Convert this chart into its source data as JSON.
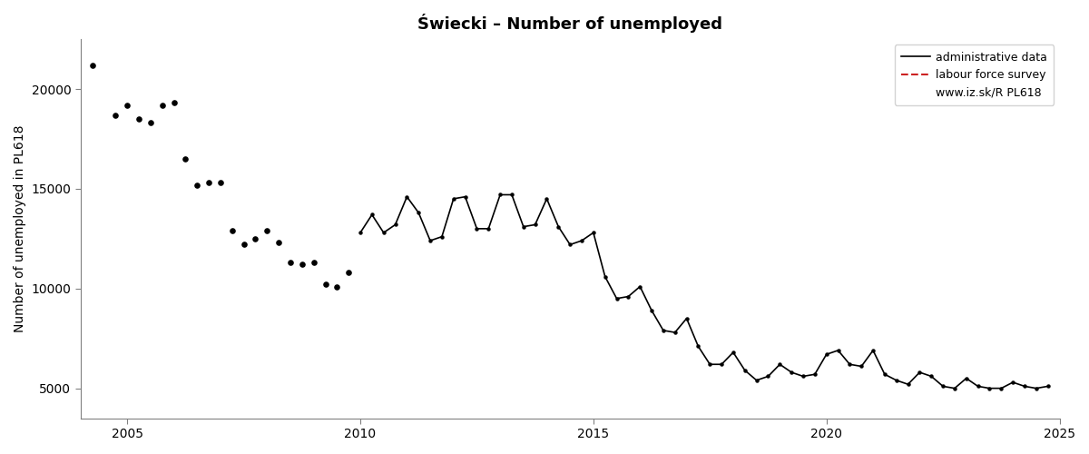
{
  "title": "Świecki – Number of unemployed",
  "ylabel": "Number of unemployed in PL618",
  "xlabel": "",
  "xlim": [
    2004.0,
    2025.0
  ],
  "ylim": [
    3500,
    22500
  ],
  "yticks": [
    5000,
    10000,
    15000,
    20000
  ],
  "xticks": [
    2005,
    2010,
    2015,
    2020,
    2025
  ],
  "legend_items": [
    {
      "label": "administrative data",
      "color": "#000000",
      "linestyle": "-",
      "linewidth": 1.2
    },
    {
      "label": "labour force survey",
      "color": "#cc2222",
      "linestyle": "--",
      "linewidth": 1.5
    }
  ],
  "legend_url": "www.iz.sk/R PL618",
  "background_color": "#ffffff",
  "plot_bg_color": "#ffffff",
  "title_fontsize": 13,
  "axis_fontsize": 10,
  "tick_fontsize": 10,
  "dot_only_years": [
    2004.25,
    2004.75,
    2005.0,
    2005.5,
    2005.75,
    2006.0,
    2006.5,
    2006.75,
    2007.0,
    2007.5,
    2007.75,
    2008.0,
    2008.5,
    2008.75,
    2009.0,
    2009.5,
    2009.75
  ],
  "dot_only_values": [
    21200,
    18700,
    19200,
    18300,
    19200,
    19300,
    15200,
    15300,
    15300,
    12200,
    12500,
    12900,
    11300,
    11200,
    11300,
    10100,
    10800
  ],
  "dot_only_years2": [
    2005.25,
    2006.25,
    2007.25,
    2008.25,
    2009.25
  ],
  "dot_only_values2": [
    18500,
    16500,
    12900,
    12300,
    10200
  ],
  "line_years": [
    2010.0,
    2010.25,
    2010.5,
    2010.75,
    2011.0,
    2011.25,
    2011.5,
    2011.75,
    2012.0,
    2012.25,
    2012.5,
    2012.75,
    2013.0,
    2013.25,
    2013.5,
    2013.75,
    2014.0,
    2014.25,
    2014.5,
    2014.75,
    2015.0,
    2015.25,
    2015.5,
    2015.75,
    2016.0,
    2016.25,
    2016.5,
    2016.75,
    2017.0,
    2017.25,
    2017.5,
    2017.75,
    2018.0,
    2018.25,
    2018.5,
    2018.75,
    2019.0,
    2019.25,
    2019.5,
    2019.75,
    2020.0,
    2020.25,
    2020.5,
    2020.75,
    2021.0,
    2021.25,
    2021.5,
    2021.75,
    2022.0,
    2022.25,
    2022.5,
    2022.75,
    2023.0,
    2023.25,
    2023.5,
    2023.75,
    2024.0,
    2024.25,
    2024.5,
    2024.75
  ],
  "line_values": [
    12800,
    13700,
    12800,
    13200,
    14600,
    13800,
    12400,
    12600,
    14500,
    14600,
    13000,
    13000,
    14700,
    14700,
    13100,
    13200,
    14500,
    13100,
    12200,
    12400,
    12800,
    10600,
    9500,
    9600,
    10100,
    8900,
    7900,
    7800,
    8500,
    7100,
    6200,
    6200,
    6800,
    5900,
    5400,
    5600,
    6200,
    5800,
    5600,
    5700,
    6700,
    6900,
    6200,
    6100,
    6900,
    5700,
    5400,
    5200,
    5800,
    5600,
    5100,
    5000,
    5500,
    5100,
    5000,
    5000,
    5300,
    5100,
    5000,
    5100
  ]
}
